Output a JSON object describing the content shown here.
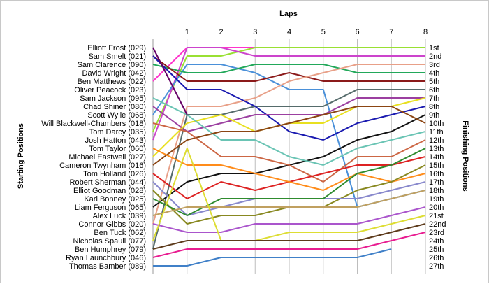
{
  "chart_data": {
    "type": "line",
    "title": "Laps",
    "xlabel": "Laps",
    "ylabel_left": "Starting Positions",
    "ylabel_right": "Finishing Positions",
    "x": [
      0,
      1,
      2,
      3,
      4,
      5,
      6,
      7,
      8
    ],
    "x_tick_labels": [
      "1",
      "2",
      "3",
      "4",
      "5",
      "6",
      "7",
      "8"
    ],
    "xlim": [
      0,
      8
    ],
    "position_range": [
      1,
      27
    ],
    "grid": "vertical",
    "starting_labels": [
      "Elliott Frost (029)",
      "Sam Smelt (021)",
      "Sam Clarence (090)",
      "David Wright (042)",
      "Ben Matthews (022)",
      "Oliver Peacock (023)",
      "Sam Jackson (095)",
      "Chad Shiner (080)",
      "Scott Wylie (068)",
      "Will Blackwell-Chambers (018)",
      "Tom Darcy (035)",
      "Josh Hatton (043)",
      "Tom Taylor (060)",
      "Michael Eastwell (027)",
      "Cameron Twynham (016)",
      "Tom Holland (026)",
      "Robert Sherman (044)",
      "Elliot Goodman (028)",
      "Karl Bonney (025)",
      "Liam Ferguson (065)",
      "Alex Luck (039)",
      "Connor Gibbs (020)",
      "Ben Tuck (062)",
      "Nicholas Spaull (077)",
      "Ben Humphrey (079)",
      "Ryan Launchbury (046)",
      "Thomas Bamber (089)"
    ],
    "finishing_labels": [
      "1st",
      "2nd",
      "3rd",
      "4th",
      "5th",
      "6th",
      "7th",
      "8th",
      "9th",
      "10th",
      "11th",
      "12th",
      "13th",
      "14th",
      "15th",
      "16th",
      "17th",
      "18th",
      "19th",
      "20th",
      "21st",
      "22nd",
      "23rd",
      "24th",
      "25th",
      "26th",
      "27th"
    ],
    "series": [
      {
        "color": "#FF33CC",
        "values": [
          5,
          1,
          1,
          1,
          1,
          1,
          1,
          1,
          1
        ]
      },
      {
        "color": "#99E033",
        "values": [
          11,
          2,
          2,
          1,
          1,
          1,
          1,
          1,
          1
        ]
      },
      {
        "color": "#CC44CC",
        "values": [
          12,
          1,
          1,
          2,
          2,
          2,
          2,
          2,
          2
        ]
      },
      {
        "color": "#4A90D9",
        "values": [
          9,
          3,
          3,
          4,
          6,
          6,
          20,
          19,
          18
        ]
      },
      {
        "color": "#22A85A",
        "values": [
          3,
          4,
          4,
          3,
          3,
          3,
          4,
          4,
          4
        ]
      },
      {
        "color": "#8B1A1A",
        "values": [
          2,
          5,
          5,
          5,
          4,
          5,
          5,
          5,
          5
        ]
      },
      {
        "color": "#E8A088",
        "values": [
          22,
          8,
          8,
          7,
          5,
          4,
          3,
          3,
          3
        ]
      },
      {
        "color": "#556B6B",
        "values": [
          25,
          9,
          9,
          8,
          8,
          8,
          6,
          6,
          6
        ]
      },
      {
        "color": "#1A1AB0",
        "values": [
          2,
          6,
          6,
          8,
          11,
          12,
          10,
          9,
          8
        ]
      },
      {
        "color": "#9B3FA0",
        "values": [
          8,
          11,
          10,
          9,
          9,
          9,
          7,
          7,
          7
        ]
      },
      {
        "color": "#E8E020",
        "values": [
          14,
          10,
          9,
          11,
          10,
          10,
          8,
          8,
          7
        ]
      },
      {
        "color": "#111111",
        "values": [
          20,
          17,
          16,
          16,
          15,
          14,
          12,
          11,
          9
        ]
      },
      {
        "color": "#6AC4B4",
        "values": [
          7,
          9,
          12,
          12,
          14,
          15,
          13,
          12,
          11
        ]
      },
      {
        "color": "#8B4513",
        "values": [
          15,
          12,
          11,
          11,
          10,
          9,
          8,
          8,
          10
        ]
      },
      {
        "color": "#CC6644",
        "values": [
          10,
          11,
          14,
          14,
          15,
          17,
          14,
          14,
          12
        ]
      },
      {
        "color": "#DD2222",
        "values": [
          16,
          19,
          17,
          18,
          17,
          16,
          15,
          15,
          14
        ]
      },
      {
        "color": "#FF8C1A",
        "values": [
          13,
          15,
          15,
          16,
          17,
          18,
          16,
          17,
          16
        ]
      },
      {
        "color": "#888820",
        "values": [
          18,
          22,
          21,
          21,
          20,
          20,
          18,
          17,
          15
        ]
      },
      {
        "color": "#8888CC",
        "values": [
          17,
          21,
          20,
          19,
          19,
          19,
          19,
          18,
          17
        ]
      },
      {
        "color": "#2E8B2E",
        "values": [
          19,
          21,
          19,
          19,
          19,
          19,
          16,
          15,
          13
        ]
      },
      {
        "color": "#C0A060",
        "values": [
          21,
          20,
          20,
          20,
          20,
          20,
          20,
          19,
          18
        ]
      },
      {
        "color": "#AA55CC",
        "values": [
          22,
          23,
          23,
          22,
          22,
          22,
          22,
          21,
          20
        ]
      },
      {
        "color": "#DDDD33",
        "values": [
          24,
          13,
          24,
          24,
          23,
          23,
          23,
          22,
          21
        ]
      },
      {
        "color": "#5C3A1A",
        "values": [
          25,
          24,
          24,
          24,
          24,
          24,
          24,
          23,
          22
        ]
      },
      {
        "color": "#E81C90",
        "values": [
          26,
          25,
          25,
          25,
          25,
          25,
          25,
          24,
          23
        ]
      },
      {
        "color": "#4080C8",
        "values": [
          27,
          27,
          26,
          26,
          26,
          26,
          26,
          25,
          null
        ]
      },
      {
        "color": "#660066",
        "values": [
          1,
          9,
          null,
          null,
          null,
          null,
          null,
          null,
          null
        ]
      }
    ]
  }
}
